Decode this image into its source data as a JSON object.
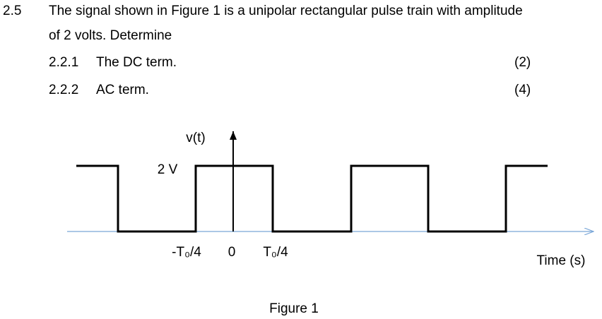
{
  "question": {
    "number": "2.5",
    "lines": [
      "The signal shown in Figure 1 is a unipolar rectangular pulse train with amplitude",
      "of 2 volts. Determine"
    ]
  },
  "items": [
    {
      "number": "2.2.1",
      "text": "The DC term.",
      "marks": "(2)"
    },
    {
      "number": "2.2.2",
      "text": "AC term.",
      "marks": "(4)"
    }
  ],
  "figure": {
    "y_label": "v(t)",
    "amplitude_label": "2 V",
    "x_labels": [
      "-T₀/4",
      "0",
      "T₀/4"
    ],
    "x_axis_label": "Time (s)",
    "caption": "Figure 1"
  }
}
